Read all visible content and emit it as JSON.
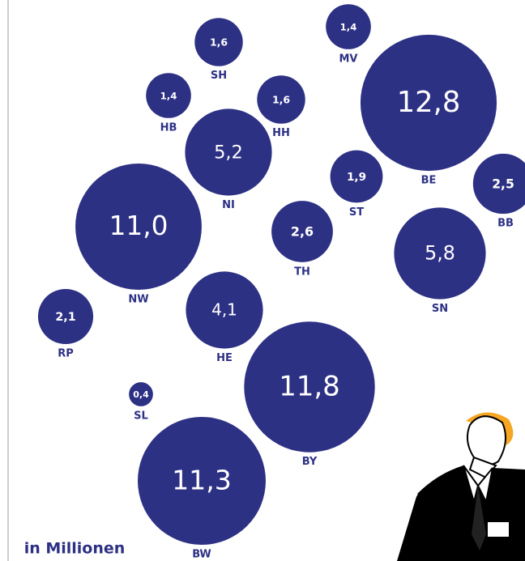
{
  "chart_data": {
    "type": "bubble",
    "subtitle": "in Millionen",
    "color": "#2d3184",
    "categories": [
      "SH",
      "MV",
      "BE",
      "HB",
      "HH",
      "NI",
      "ST",
      "BB",
      "NW",
      "TH",
      "SN",
      "RP",
      "HE",
      "SL",
      "BY",
      "BW"
    ],
    "values": [
      1.6,
      1.4,
      12.8,
      1.4,
      1.6,
      5.2,
      1.9,
      2.5,
      11.0,
      2.6,
      5.8,
      2.1,
      4.1,
      0.4,
      11.8,
      11.3
    ],
    "value_labels": [
      "1,6",
      "1,4",
      "12,8",
      "1,4",
      "1,6",
      "5,2",
      "1,9",
      "2,5",
      "11,0",
      "2,6",
      "5,8",
      "2,1",
      "4,1",
      "0,4",
      "11,8",
      "11,3"
    ]
  }
}
